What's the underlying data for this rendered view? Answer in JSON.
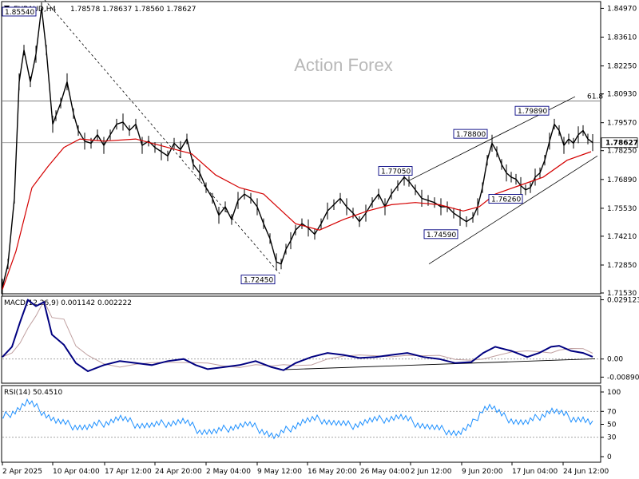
{
  "header": {
    "symbol": "EURAUD,H4",
    "ohlc": "1.78578 1.78637 1.78560 1.78627"
  },
  "watermark": "Action Forex",
  "price_panel": {
    "ylim": [
      1.7153,
      1.8525
    ],
    "ticks": [
      "1.84970",
      "1.83610",
      "1.82250",
      "1.80930",
      "1.79570",
      "1.78250",
      "1.76890",
      "1.75530",
      "1.74210",
      "1.72850",
      "1.71530"
    ],
    "current_price": "1.78627",
    "fib_label": "61.8",
    "fib_level": 1.8059,
    "hline_level": 1.78627,
    "annotations": [
      {
        "label": "1.85540",
        "value": 1.8554
      },
      {
        "label": "1.72450",
        "value": 1.7245
      },
      {
        "label": "1.77050",
        "value": 1.7705
      },
      {
        "label": "1.74590",
        "value": 1.7459
      },
      {
        "label": "1.78800",
        "value": 1.788
      },
      {
        "label": "1.76260",
        "value": 1.7626
      },
      {
        "label": "1.79890",
        "value": 1.7989
      }
    ]
  },
  "macd_panel": {
    "title": "MACD(12,26,9) 0.001142 0.002222",
    "ticks": [
      "0.029123",
      "0.00",
      "-0.008901"
    ],
    "ylim": [
      -0.0115,
      0.0305
    ]
  },
  "rsi_panel": {
    "title": "RSI(14) 50.4510",
    "ticks": [
      "100",
      "70",
      "50",
      "30",
      "0"
    ],
    "levels": [
      70,
      30
    ]
  },
  "x_axis": {
    "labels": [
      "2 Apr 2025",
      "10 Apr 04:00",
      "17 Apr 12:00",
      "24 Apr 20:00",
      "2 May 04:00",
      "9 May 12:00",
      "16 May 20:00",
      "26 May 04:00",
      "2 Jun 12:00",
      "9 Jun 20:00",
      "17 Jun 04:00",
      "24 Jun 12:00"
    ]
  },
  "colors": {
    "candles": "#000000",
    "ma": "#d40000",
    "macd_line": "#000080",
    "signal_line": "#c0a0a0",
    "rsi_line": "#1e90ff",
    "grid": "#c8c8c8"
  },
  "chart_data": {
    "type": "line",
    "title": "EURAUD,H4",
    "series": [
      {
        "name": "EURAUD",
        "x": [
          "2 Apr 2025",
          "10 Apr 04:00",
          "17 Apr 12:00",
          "24 Apr 20:00",
          "2 May 04:00",
          "9 May 12:00",
          "16 May 20:00",
          "26 May 04:00",
          "2 Jun 12:00",
          "9 Jun 20:00",
          "17 Jun 04:00",
          "24 Jun 12:00"
        ],
        "values": [
          1.724,
          1.795,
          1.793,
          1.781,
          1.752,
          1.728,
          1.748,
          1.755,
          1.758,
          1.77,
          1.77,
          1.786
        ]
      },
      {
        "name": "MA",
        "x": [
          "2 Apr 2025",
          "10 Apr 04:00",
          "17 Apr 12:00",
          "24 Apr 20:00",
          "2 May 04:00",
          "9 May 12:00",
          "16 May 20:00",
          "26 May 04:00",
          "2 Jun 12:00",
          "9 Jun 20:00",
          "17 Jun 04:00",
          "24 Jun 12:00"
        ],
        "values": [
          1.735,
          1.784,
          1.79,
          1.784,
          1.766,
          1.752,
          1.745,
          1.753,
          1.757,
          1.759,
          1.766,
          1.78
        ]
      }
    ]
  }
}
